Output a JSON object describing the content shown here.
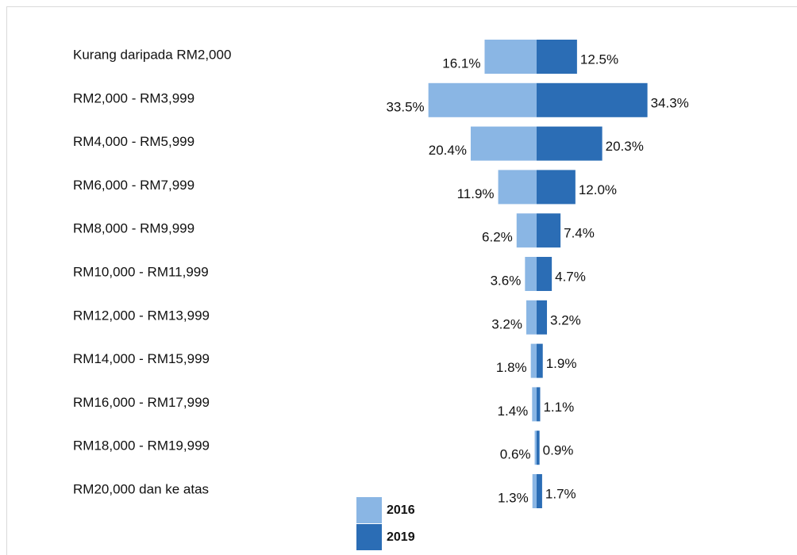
{
  "chart_data": {
    "type": "butterfly",
    "categories": [
      "Kurang daripada RM2,000",
      "RM2,000 - RM3,999",
      "RM4,000 - RM5,999",
      "RM6,000 - RM7,999",
      "RM8,000 - RM9,999",
      "RM10,000 - RM11,999",
      "RM12,000 - RM13,999",
      "RM14,000 - RM15,999",
      "RM16,000 - RM17,999",
      "RM18,000 - RM19,999",
      "RM20,000 dan ke atas"
    ],
    "series": [
      {
        "name": "2016",
        "color": "#8ab6e4",
        "side": "left",
        "values": [
          16.1,
          33.5,
          20.4,
          11.9,
          6.2,
          3.6,
          3.2,
          1.8,
          1.4,
          0.6,
          1.3
        ],
        "value_labels": [
          "16.1%",
          "33.5%",
          "20.4%",
          "11.9%",
          "6.2%",
          "3.6%",
          "3.2%",
          "1.8%",
          "1.4%",
          "0.6%",
          "1.3%"
        ]
      },
      {
        "name": "2019",
        "color": "#2b6db5",
        "side": "right",
        "values": [
          12.5,
          34.3,
          20.3,
          12.0,
          7.4,
          4.7,
          3.2,
          1.9,
          1.1,
          0.9,
          1.7
        ],
        "value_labels": [
          "12.5%",
          "34.3%",
          "20.3%",
          "12.0%",
          "7.4%",
          "4.7%",
          "3.2%",
          "1.9%",
          "1.1%",
          "0.9%",
          "1.7%"
        ]
      }
    ]
  }
}
